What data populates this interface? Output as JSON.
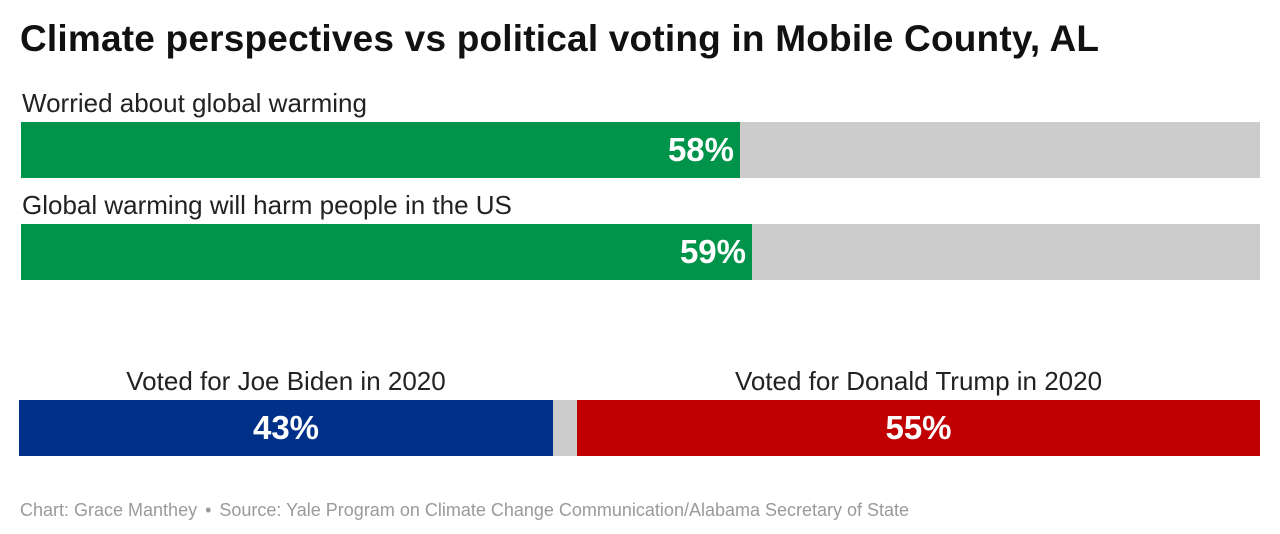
{
  "chart_data": [
    {
      "type": "bar",
      "title": "Climate perspectives vs political voting in Mobile County, AL",
      "orientation": "horizontal",
      "categories": [
        "Worried about global warming",
        "Global warming will harm people in the US"
      ],
      "values": [
        58,
        59
      ],
      "value_labels": [
        "58%",
        "59%"
      ],
      "unit": "%",
      "xlim": [
        0,
        100
      ],
      "colors": {
        "fill": "#00934a",
        "track": "#cccccc"
      },
      "grid": false
    },
    {
      "type": "bar",
      "orientation": "horizontal",
      "stacked": true,
      "categories": [
        "Voted for Joe Biden in 2020",
        "Voted for Donald Trump in 2020"
      ],
      "values": [
        43,
        55
      ],
      "value_labels": [
        "43%",
        "55%"
      ],
      "unit": "%",
      "xlim": [
        0,
        100
      ],
      "colors": {
        "biden": "#003087",
        "trump": "#c00000",
        "remainder": "#cccccc"
      },
      "grid": false
    }
  ],
  "footer": {
    "credit": "Chart: Grace Manthey",
    "separator": "•",
    "source": "Source: Yale Program on Climate Change Communication/Alabama Secretary of State"
  }
}
